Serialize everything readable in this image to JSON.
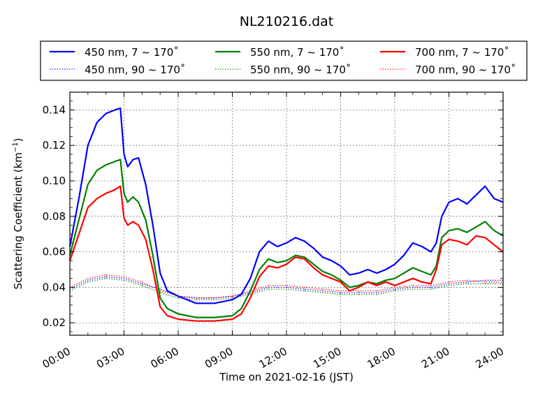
{
  "chart_data": {
    "type": "line",
    "title": "NL210216.dat",
    "xlabel": "Time on 2021-02-16 (JST)",
    "ylabel_main": "Scattering Coefficient (km",
    "ylabel_sup": "−1",
    "ylabel_close": ")",
    "xlim": [
      0,
      24
    ],
    "ylim": [
      0.013,
      0.15
    ],
    "x_ticks": [
      0,
      3,
      6,
      9,
      12,
      15,
      18,
      21,
      24
    ],
    "x_tick_labels": [
      "00:00",
      "03:00",
      "06:00",
      "09:00",
      "12:00",
      "15:00",
      "18:00",
      "21:00",
      "24:00"
    ],
    "y_ticks": [
      0.02,
      0.04,
      0.06,
      0.08,
      0.1,
      0.12,
      0.14
    ],
    "y_tick_labels": [
      "0.02",
      "0.04",
      "0.06",
      "0.08",
      "0.10",
      "0.12",
      "0.14"
    ],
    "grid": true,
    "legend_placement": "above plot, 3 columns",
    "series": [
      {
        "name": "450 nm, 7 ~ 170˚",
        "color": "#0000ff",
        "style": "solid",
        "x": [
          0,
          0.5,
          1,
          1.5,
          2,
          2.5,
          2.8,
          3.0,
          3.2,
          3.5,
          3.8,
          4.2,
          4.6,
          5.0,
          5.4,
          6,
          7,
          8,
          9,
          9.5,
          10,
          10.5,
          11,
          11.5,
          12,
          12.5,
          13,
          13.5,
          14,
          14.5,
          15,
          15.5,
          16,
          16.5,
          17,
          17.5,
          18,
          18.5,
          19,
          19.5,
          20,
          20.3,
          20.6,
          21,
          21.5,
          22,
          22.5,
          23,
          23.5,
          24
        ],
        "y": [
          0.063,
          0.09,
          0.12,
          0.133,
          0.138,
          0.14,
          0.141,
          0.115,
          0.108,
          0.112,
          0.113,
          0.098,
          0.075,
          0.048,
          0.038,
          0.035,
          0.031,
          0.031,
          0.033,
          0.036,
          0.045,
          0.06,
          0.066,
          0.063,
          0.065,
          0.068,
          0.066,
          0.062,
          0.057,
          0.055,
          0.052,
          0.047,
          0.048,
          0.05,
          0.048,
          0.05,
          0.053,
          0.058,
          0.065,
          0.063,
          0.06,
          0.065,
          0.08,
          0.088,
          0.09,
          0.087,
          0.092,
          0.097,
          0.09,
          0.088
        ]
      },
      {
        "name": "550 nm, 7 ~ 170˚",
        "color": "#008000",
        "style": "solid",
        "x": [
          0,
          0.5,
          1,
          1.5,
          2,
          2.5,
          2.8,
          3.0,
          3.2,
          3.5,
          3.8,
          4.2,
          4.6,
          5.0,
          5.4,
          6,
          7,
          8,
          9,
          9.5,
          10,
          10.5,
          11,
          11.5,
          12,
          12.5,
          13,
          13.5,
          14,
          14.5,
          15,
          15.5,
          16,
          16.5,
          17,
          17.5,
          18,
          18.5,
          19,
          19.5,
          20,
          20.3,
          20.6,
          21,
          21.5,
          22,
          22.5,
          23,
          23.5,
          24
        ],
        "y": [
          0.058,
          0.078,
          0.098,
          0.106,
          0.109,
          0.111,
          0.112,
          0.093,
          0.088,
          0.091,
          0.088,
          0.078,
          0.058,
          0.034,
          0.028,
          0.025,
          0.023,
          0.023,
          0.024,
          0.028,
          0.038,
          0.05,
          0.056,
          0.054,
          0.055,
          0.058,
          0.057,
          0.053,
          0.049,
          0.047,
          0.044,
          0.04,
          0.041,
          0.043,
          0.042,
          0.044,
          0.045,
          0.048,
          0.051,
          0.049,
          0.047,
          0.052,
          0.068,
          0.072,
          0.073,
          0.071,
          0.074,
          0.077,
          0.072,
          0.069
        ]
      },
      {
        "name": "700 nm, 7 ~ 170˚",
        "color": "#ff0000",
        "style": "solid",
        "x": [
          0,
          0.5,
          1,
          1.5,
          2,
          2.5,
          2.8,
          3.0,
          3.2,
          3.5,
          3.8,
          4.2,
          4.6,
          5.0,
          5.4,
          6,
          7,
          8,
          9,
          9.5,
          10,
          10.5,
          11,
          11.5,
          12,
          12.5,
          13,
          13.5,
          14,
          14.5,
          15,
          15.5,
          16,
          16.5,
          17,
          17.5,
          18,
          18.5,
          19,
          19.5,
          20,
          20.3,
          20.6,
          21,
          21.5,
          22,
          22.5,
          23,
          23.5,
          24
        ],
        "y": [
          0.055,
          0.07,
          0.085,
          0.09,
          0.093,
          0.095,
          0.097,
          0.079,
          0.075,
          0.077,
          0.075,
          0.067,
          0.05,
          0.029,
          0.024,
          0.022,
          0.021,
          0.021,
          0.022,
          0.025,
          0.034,
          0.046,
          0.052,
          0.051,
          0.053,
          0.057,
          0.056,
          0.051,
          0.047,
          0.045,
          0.043,
          0.038,
          0.04,
          0.043,
          0.041,
          0.043,
          0.041,
          0.043,
          0.045,
          0.043,
          0.042,
          0.05,
          0.064,
          0.067,
          0.066,
          0.064,
          0.069,
          0.068,
          0.064,
          0.06
        ]
      },
      {
        "name": "450 nm, 90 ~ 170˚",
        "color": "#0000ff",
        "style": "dotted",
        "x": [
          0,
          1,
          2,
          3,
          4,
          5,
          6,
          7,
          8,
          9,
          10,
          11,
          12,
          13,
          14,
          15,
          16,
          17,
          18,
          19,
          20,
          21,
          22,
          23,
          24
        ],
        "y": [
          0.039,
          0.044,
          0.046,
          0.045,
          0.042,
          0.039,
          0.035,
          0.034,
          0.034,
          0.035,
          0.037,
          0.04,
          0.04,
          0.039,
          0.038,
          0.037,
          0.037,
          0.037,
          0.039,
          0.04,
          0.04,
          0.042,
          0.043,
          0.044,
          0.044
        ]
      },
      {
        "name": "550 nm, 90 ~ 170˚",
        "color": "#008000",
        "style": "dotted",
        "x": [
          0,
          1,
          2,
          3,
          4,
          5,
          6,
          7,
          8,
          9,
          10,
          11,
          12,
          13,
          14,
          15,
          16,
          17,
          18,
          19,
          20,
          21,
          22,
          23,
          24
        ],
        "y": [
          0.038,
          0.043,
          0.045,
          0.044,
          0.041,
          0.037,
          0.034,
          0.033,
          0.033,
          0.034,
          0.036,
          0.039,
          0.039,
          0.038,
          0.037,
          0.036,
          0.036,
          0.036,
          0.038,
          0.039,
          0.039,
          0.041,
          0.042,
          0.042,
          0.042
        ]
      },
      {
        "name": "700 nm, 90 ~ 170˚",
        "color": "#ff0000",
        "style": "dotted",
        "x": [
          0,
          1,
          2,
          3,
          4,
          5,
          6,
          7,
          8,
          9,
          10,
          11,
          12,
          13,
          14,
          15,
          16,
          17,
          18,
          19,
          20,
          21,
          22,
          23,
          24
        ],
        "y": [
          0.04,
          0.045,
          0.047,
          0.046,
          0.043,
          0.038,
          0.035,
          0.034,
          0.034,
          0.035,
          0.038,
          0.041,
          0.041,
          0.04,
          0.039,
          0.038,
          0.038,
          0.038,
          0.04,
          0.041,
          0.041,
          0.043,
          0.044,
          0.043,
          0.043
        ]
      }
    ]
  }
}
